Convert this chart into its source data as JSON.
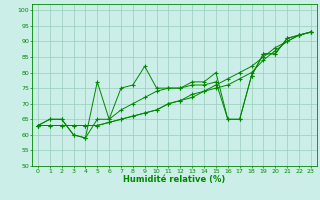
{
  "xlabel": "Humidité relative (%)",
  "xlim": [
    -0.5,
    23.5
  ],
  "ylim": [
    50,
    102
  ],
  "yticks": [
    50,
    55,
    60,
    65,
    70,
    75,
    80,
    85,
    90,
    95,
    100
  ],
  "xticks": [
    0,
    1,
    2,
    3,
    4,
    5,
    6,
    7,
    8,
    9,
    10,
    11,
    12,
    13,
    14,
    15,
    16,
    17,
    18,
    19,
    20,
    21,
    22,
    23
  ],
  "background_color": "#cceee8",
  "grid_color": "#99ccbb",
  "line_color": "#008800",
  "series": [
    [
      63,
      65,
      65,
      60,
      59,
      77,
      65,
      75,
      76,
      82,
      75,
      75,
      75,
      77,
      77,
      80,
      65,
      65,
      79,
      86,
      86,
      91,
      92,
      93
    ],
    [
      63,
      65,
      65,
      60,
      59,
      65,
      65,
      68,
      70,
      72,
      74,
      75,
      75,
      76,
      76,
      77,
      65,
      65,
      79,
      86,
      86,
      91,
      92,
      93
    ],
    [
      63,
      63,
      63,
      63,
      63,
      63,
      64,
      65,
      66,
      67,
      68,
      70,
      71,
      73,
      74,
      76,
      78,
      80,
      82,
      85,
      88,
      90,
      92,
      93
    ],
    [
      63,
      63,
      63,
      63,
      63,
      63,
      64,
      65,
      66,
      67,
      68,
      70,
      71,
      72,
      74,
      75,
      76,
      78,
      80,
      84,
      87,
      90,
      92,
      93
    ]
  ]
}
